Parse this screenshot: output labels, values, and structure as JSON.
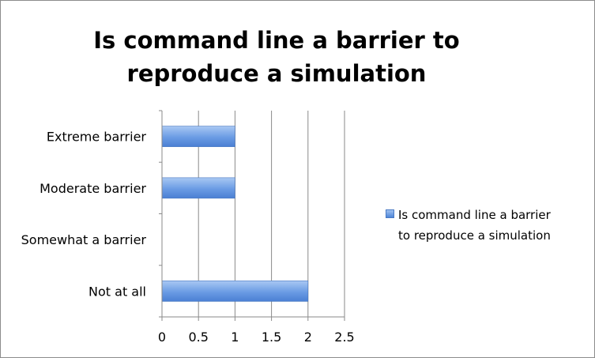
{
  "chart_data": {
    "type": "bar",
    "orientation": "horizontal",
    "title": "Is command line a barrier to reproduce a simulation",
    "title_lines": [
      "Is command line a barrier to",
      "reproduce a simulation"
    ],
    "categories": [
      "Extreme barrier",
      "Moderate barrier",
      "Somewhat a barrier",
      "Not at all"
    ],
    "series": [
      {
        "name": "Is command line a barrier to reproduce a simulation",
        "name_lines": [
          "Is command line a barrier",
          "to reproduce a simulation"
        ],
        "values": [
          1,
          1,
          0,
          2
        ],
        "color": "#5b8fdf"
      }
    ],
    "xlim": [
      0,
      2.5
    ],
    "x_ticks": [
      "0",
      "0.5",
      "1",
      "1.5",
      "2",
      "2.5"
    ],
    "x_tick_values": [
      0,
      0.5,
      1,
      1.5,
      2,
      2.5
    ],
    "grid": "vertical",
    "legend": "right",
    "xlabel": "",
    "ylabel": ""
  }
}
